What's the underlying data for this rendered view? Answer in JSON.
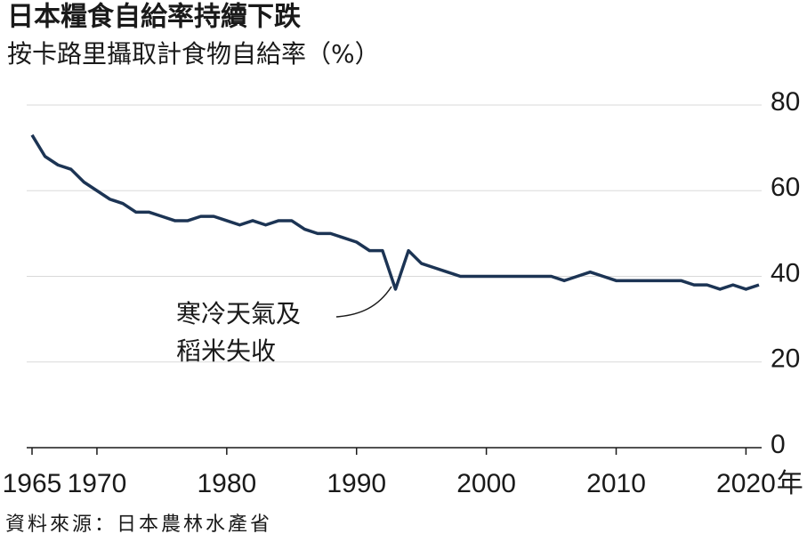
{
  "chart_data": {
    "type": "line",
    "title": "日本糧食自給率持續下跌",
    "subtitle": "按卡路里攝取計食物自給率（%）",
    "x": [
      1965,
      1966,
      1967,
      1968,
      1969,
      1970,
      1971,
      1972,
      1973,
      1974,
      1975,
      1976,
      1977,
      1978,
      1979,
      1980,
      1981,
      1982,
      1983,
      1984,
      1985,
      1986,
      1987,
      1988,
      1989,
      1990,
      1991,
      1992,
      1993,
      1994,
      1995,
      1996,
      1997,
      1998,
      1999,
      2000,
      2001,
      2002,
      2003,
      2004,
      2005,
      2006,
      2007,
      2008,
      2009,
      2010,
      2011,
      2012,
      2013,
      2014,
      2015,
      2016,
      2017,
      2018,
      2019,
      2020,
      2021
    ],
    "values": [
      73,
      68,
      66,
      65,
      62,
      60,
      58,
      57,
      55,
      55,
      54,
      53,
      53,
      54,
      54,
      53,
      52,
      53,
      52,
      53,
      53,
      51,
      50,
      50,
      49,
      48,
      46,
      46,
      37,
      46,
      43,
      42,
      41,
      40,
      40,
      40,
      40,
      40,
      40,
      40,
      40,
      39,
      40,
      41,
      40,
      39,
      39,
      39,
      39,
      39,
      39,
      38,
      38,
      37,
      38,
      37,
      38
    ],
    "color": "#1c3454",
    "xlim": [
      1965,
      2021
    ],
    "xticks": [
      1965,
      1970,
      1980,
      1990,
      2000,
      2010,
      2020
    ],
    "x_unit": "年",
    "ylim": [
      0,
      80
    ],
    "yticks": [
      0,
      20,
      40,
      60,
      80
    ],
    "grid": true,
    "annotation": [
      "寒冷天氣及",
      "稻米失收"
    ],
    "source": "資料來源：日本農林水產省"
  }
}
